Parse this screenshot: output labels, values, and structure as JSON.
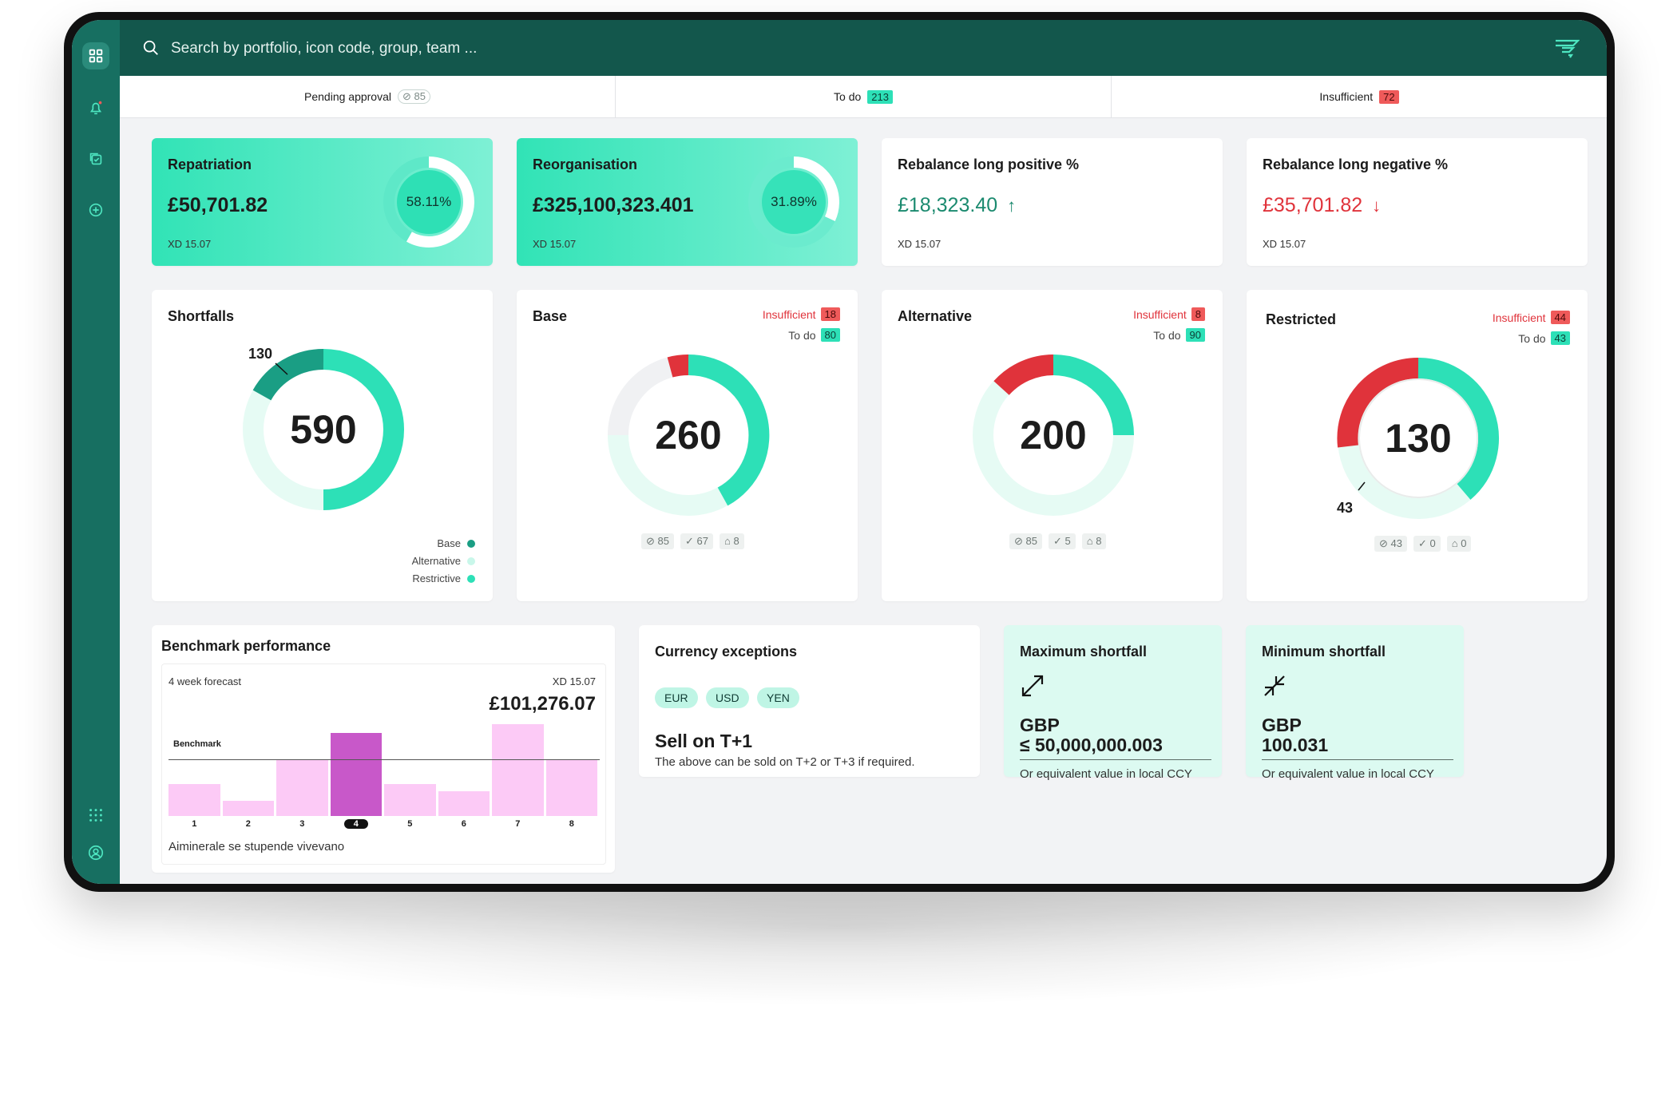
{
  "search": {
    "placeholder": "Search by portfolio, icon code, group, team ..."
  },
  "tabs": [
    {
      "label": "Pending approval",
      "count": "85",
      "style": "outline"
    },
    {
      "label": "To do",
      "count": "213",
      "style": "mint"
    },
    {
      "label": "Insufficient",
      "count": "72",
      "style": "red"
    }
  ],
  "kpis": [
    {
      "title": "Repatriation",
      "value": "£50,701.82",
      "sub": "XD 15.07",
      "percent": "58.11%",
      "progress": 0.5811
    },
    {
      "title": "Reorganisation",
      "value": "£325,100,323.401",
      "sub": "XD 15.07",
      "percent": "31.89%",
      "progress": 0.3189
    },
    {
      "title": "Rebalance long positive %",
      "value": "£18,323.40",
      "arrow": "↑",
      "sub": "XD 15.07"
    },
    {
      "title": "Rebalance long negative %",
      "value": "£35,701.82",
      "arrow": "↓",
      "sub": "XD 15.07"
    }
  ],
  "shortfalls": {
    "title": "Shortfalls",
    "total": "590",
    "callout": "130",
    "legend": [
      {
        "label": "Base",
        "color": "#1a9e84"
      },
      {
        "label": "Alternative",
        "color": "#c9f7ea"
      },
      {
        "label": "Restrictive",
        "color": "#2de0b7"
      }
    ]
  },
  "donuts": [
    {
      "title": "Base",
      "total": "260",
      "insufficient_label": "Insufficient",
      "insufficient": "18",
      "todo_label": "To do",
      "todo": "80",
      "stats": [
        "85",
        "67",
        "8"
      ]
    },
    {
      "title": "Alternative",
      "total": "200",
      "insufficient_label": "Insufficient",
      "insufficient": "8",
      "todo_label": "To do",
      "todo": "90",
      "stats": [
        "85",
        "5",
        "8"
      ]
    },
    {
      "title": "Restricted",
      "total": "130",
      "insufficient_label": "Insufficient",
      "insufficient": "44",
      "todo_label": "To do",
      "todo": "43",
      "callout": "43",
      "stats": [
        "43",
        "0",
        "0"
      ]
    }
  ],
  "benchmark": {
    "title": "Benchmark performance",
    "forecast_label": "4 week forecast",
    "date": "XD 15.07",
    "amount": "£101,276.07",
    "benchmark_label": "Benchmark",
    "caption": "Aiminerale se stupende vivevano",
    "chart_data": {
      "type": "bar",
      "categories": [
        "1",
        "2",
        "3",
        "4",
        "5",
        "6",
        "7",
        "8"
      ],
      "values": [
        38,
        18,
        68,
        100,
        38,
        30,
        110,
        68
      ],
      "benchmark": 68,
      "ylim": [
        0,
        115
      ],
      "selected": "4",
      "xlabel": "",
      "ylabel": ""
    }
  },
  "currency": {
    "title": "Currency exceptions",
    "chips": [
      "EUR",
      "USD",
      "YEN"
    ],
    "heading": "Sell on T+1",
    "note": "The above can be sold on T+2 or T+3 if required."
  },
  "max_shortfall": {
    "title": "Maximum shortfall",
    "currency": "GBP",
    "value": "≤ 50,000,000.003",
    "note": "Or equivalent value in local CCY"
  },
  "min_shortfall": {
    "title": "Minimum shortfall",
    "currency": "GBP",
    "value": "100.031",
    "note": "Or equivalent value in local CCY"
  }
}
